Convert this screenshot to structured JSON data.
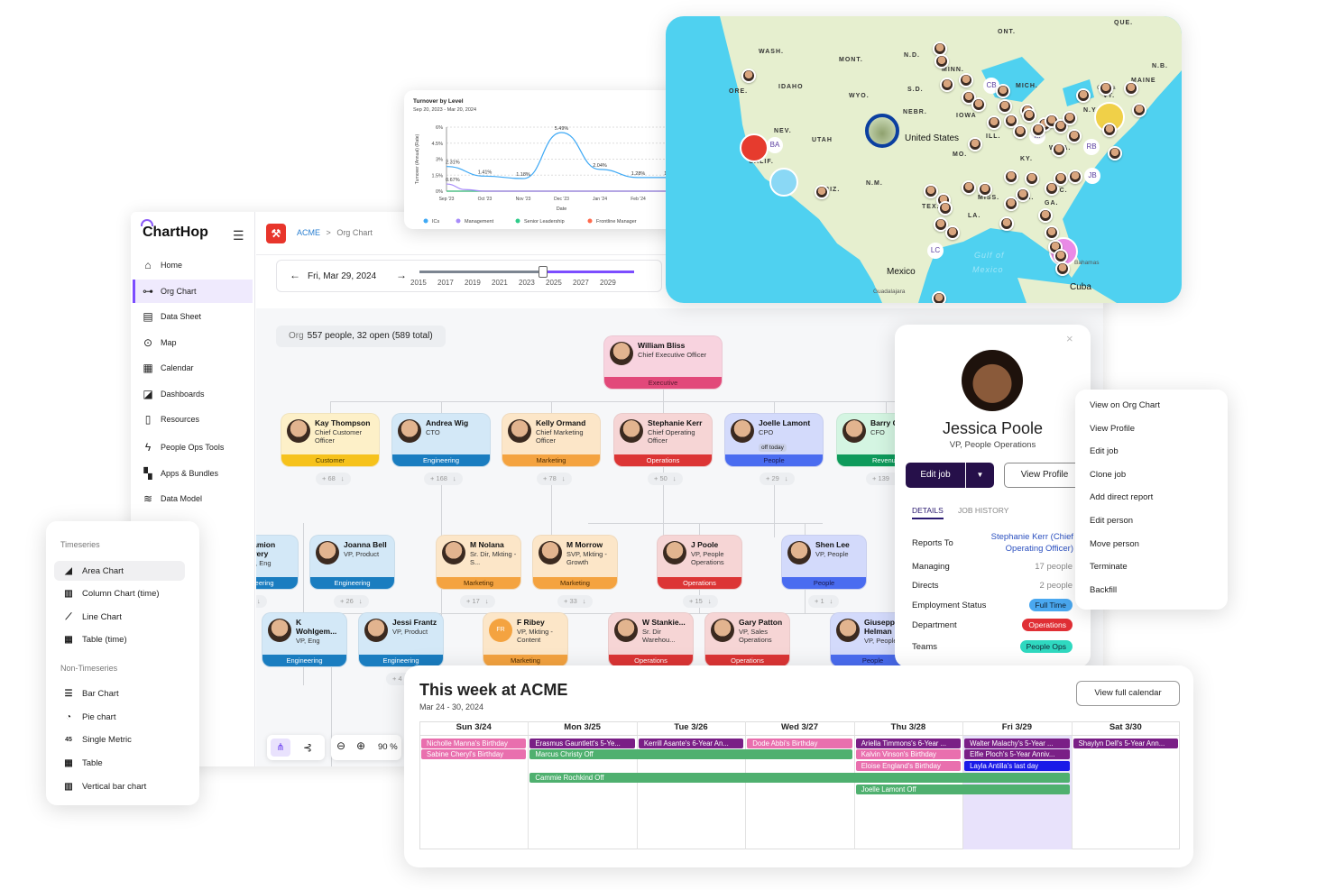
{
  "app": {
    "brand": "ChartHop",
    "org_logo": "ACME",
    "breadcrumb": [
      "ACME",
      ">",
      "Org Chart"
    ],
    "sidebar": [
      {
        "label": "Home",
        "icon": "home-icon"
      },
      {
        "label": "Org Chart",
        "icon": "org-chart-icon",
        "active": true
      },
      {
        "label": "Data Sheet",
        "icon": "data-sheet-icon"
      },
      {
        "label": "Map",
        "icon": "map-pin-icon"
      },
      {
        "label": "Calendar",
        "icon": "calendar-icon"
      },
      {
        "label": "Dashboards",
        "icon": "dashboard-icon"
      },
      {
        "label": "Resources",
        "icon": "book-icon"
      },
      {
        "label": "People Ops Tools",
        "icon": "lightning-icon"
      },
      {
        "label": "Apps & Bundles",
        "icon": "apps-icon"
      },
      {
        "label": "Data Model",
        "icon": "database-icon"
      }
    ],
    "timeline": {
      "date": "Fri, Mar 29, 2024",
      "years": [
        "2015",
        "2017",
        "2019",
        "2021",
        "2023",
        "2025",
        "2027",
        "2029"
      ],
      "slider_position_year": 2024.2
    },
    "org_summary": {
      "label": "Org",
      "value": "557 people, 32 open (589 total)"
    },
    "zoom_level": "90 %"
  },
  "org_cards": [
    {
      "name": "William Bliss",
      "title": "Chief Executive Officer",
      "dept": "Executive"
    },
    {
      "name": "Kay Thompson",
      "title": "Chief Customer Officer",
      "dept": "Customer"
    },
    {
      "name": "Andrea Wig",
      "title": "CTO",
      "dept": "Engineering"
    },
    {
      "name": "Kelly Ormand",
      "title": "Chief Marketing Officer",
      "dept": "Marketing"
    },
    {
      "name": "Stephanie Kerr",
      "title": "Chief Operating Officer",
      "dept": "Operations"
    },
    {
      "name": "Joelle Lamont",
      "title": "CPO",
      "dept": "People",
      "badge": "off today"
    },
    {
      "name": "Barry C",
      "title": "CFO",
      "dept": "Revenue"
    },
    {
      "name": "Damion Avery",
      "title": "VP, Eng",
      "dept": "Engineering"
    },
    {
      "name": "Joanna Bell",
      "title": "VP, Product",
      "dept": "Engineering"
    },
    {
      "name": "M Nolana",
      "title": "Sr. Dir, Mkting - S...",
      "dept": "Marketing"
    },
    {
      "name": "M Morrow",
      "title": "SVP, Mkting - Growth",
      "dept": "Marketing"
    },
    {
      "name": "J Poole",
      "title": "VP, People Operations",
      "dept": "Operations"
    },
    {
      "name": "Shen Lee",
      "title": "VP, People",
      "dept": "People"
    },
    {
      "name": "K Wohlgem...",
      "title": "VP, Eng",
      "dept": "Engineering"
    },
    {
      "name": "Jessi Frantz",
      "title": "VP, Product",
      "dept": "Engineering"
    },
    {
      "name": "F Ribey",
      "title": "VP, Mkting - Content",
      "dept": "Marketing",
      "initials": "FR"
    },
    {
      "name": "W Stankie...",
      "title": "Sr. Dir Warehou...",
      "dept": "Operations"
    },
    {
      "name": "Gary Patton",
      "title": "VP, Sales Operations",
      "dept": "Operations"
    },
    {
      "name": "Giuseppe Helman",
      "title": "VP, People",
      "dept": "People"
    }
  ],
  "report_counts": [
    "+ 68",
    "+ 168",
    "+ 78",
    "+ 50",
    "+ 29",
    "+ 139",
    "",
    "+ 26",
    "+ 17",
    "+ 33",
    "+ 15",
    "+ 1",
    "+ 4"
  ],
  "dept_colors": {
    "Executive": {
      "bg": "#f8d3df",
      "band": "#e2497a",
      "text": "#5a1a2e"
    },
    "Customer": {
      "bg": "#fdf0c8",
      "band": "#f6c21c",
      "text": "#4a3a00"
    },
    "Engineering": {
      "bg": "#d3e8f7",
      "band": "#1a7dc0",
      "text": "#ffffff"
    },
    "Marketing": {
      "bg": "#fce6c8",
      "band": "#f4a340",
      "text": "#4a2a00"
    },
    "Operations": {
      "bg": "#f6d5d5",
      "band": "#dc3535",
      "text": "#ffffff"
    },
    "People": {
      "bg": "#d3dafb",
      "band": "#4a6cf0",
      "text": "#1a1a50"
    },
    "Revenue": {
      "bg": "#d4f5e2",
      "band": "#0e9a5b",
      "text": "#ffffff"
    }
  },
  "chart_data": {
    "type": "line",
    "title": "Turnover by Level",
    "subtitle": "Sep 20, 2023 - Mar 20, 2024",
    "xlabel": "Date",
    "ylabel": "Turnover (Annual) (Rate)",
    "categories": [
      "Sep '23",
      "Oct '23",
      "Nov '23",
      "Dec '23",
      "Jan '24",
      "Feb '24",
      "Mar '24"
    ],
    "yticks": [
      "0%",
      "1.5%",
      "3%",
      "4.5%",
      "6%"
    ],
    "ylim": [
      0,
      6
    ],
    "grid": true,
    "legend_position": "bottom",
    "series": [
      {
        "name": "ICs",
        "color": "#3fa9f5",
        "values": [
          2.31,
          1.41,
          1.18,
          5.49,
          2.04,
          1.28,
          1.28
        ],
        "labels": [
          "2.31%",
          "1.41%",
          "1.18%",
          "5.49%",
          "2.04%",
          "1.28%",
          "1.28%"
        ]
      },
      {
        "name": "Management",
        "color": "#a78bfa",
        "values": [
          0.67,
          0,
          0,
          0,
          0,
          0,
          0
        ],
        "labels": [
          "0.67%"
        ]
      },
      {
        "name": "Senior Leadership",
        "color": "#2ecc8a",
        "values": [
          0,
          0,
          0,
          0,
          0,
          0,
          0
        ]
      },
      {
        "name": "Frontline Manager",
        "color": "#ff6a4d",
        "values": [
          0,
          0,
          0,
          0,
          0,
          0,
          0
        ]
      }
    ]
  },
  "map": {
    "labels": [
      "WASH.",
      "MONT.",
      "N.D.",
      "MINN.",
      "ONT.",
      "QUE.",
      "ORE.",
      "IDAHO",
      "WYO.",
      "S.D.",
      "MICH.",
      "Ottawa",
      "MAINE",
      "N.B.",
      "NEBR.",
      "IOWA",
      "N.Y.",
      "VT.",
      "NEV.",
      "UTAH",
      "United States",
      "ILL.",
      "MO.",
      "W.VA.",
      "KY.",
      "CALIF.",
      "N.M.",
      "ARIZ.",
      "MISS.",
      "ALA.",
      "GA.",
      "S.C.",
      "TEX.",
      "LA.",
      "Houston",
      "Gulf of",
      "Mexico",
      "Mexico",
      "Guadalajara",
      "Bahamas",
      "Cuba"
    ],
    "initials": [
      "BA",
      "CB",
      "M",
      "RB",
      "JB",
      "LC"
    ]
  },
  "profile": {
    "name": "Jessica Poole",
    "title": "VP, People Operations",
    "edit_label": "Edit job",
    "view_label": "View Profile",
    "tabs": [
      "DETAILS",
      "JOB HISTORY"
    ],
    "reports_to_label": "Reports To",
    "reports_to": "Stephanie Kerr (Chief Operating Officer)",
    "managing_label": "Managing",
    "managing": "17 people",
    "directs_label": "Directs",
    "directs": "2 people",
    "employment_label": "Employment Status",
    "employment": "Full Time",
    "department_label": "Department",
    "department": "Operations",
    "teams_label": "Teams",
    "teams": "People Ops"
  },
  "context_menu": [
    "View on Org Chart",
    "View Profile",
    "Edit job",
    "Clone job",
    "Add direct report",
    "Edit person",
    "Move person",
    "Terminate",
    "Backfill"
  ],
  "chart_types": {
    "timeseries_label": "Timeseries",
    "timeseries": [
      {
        "label": "Area Chart",
        "icon": "area-chart-icon",
        "glyph": "◢"
      },
      {
        "label": "Column Chart (time)",
        "icon": "column-chart-icon",
        "glyph": "▥"
      },
      {
        "label": "Line Chart",
        "icon": "line-chart-icon",
        "glyph": "⟋"
      },
      {
        "label": "Table (time)",
        "icon": "table-icon",
        "glyph": "▦"
      }
    ],
    "non_timeseries_label": "Non-Timeseries",
    "non_timeseries": [
      {
        "label": "Bar Chart",
        "icon": "bar-chart-icon",
        "glyph": "☰"
      },
      {
        "label": "Pie chart",
        "icon": "pie-chart-icon",
        "glyph": "◔"
      },
      {
        "label": "Single Metric",
        "icon": "single-metric-icon",
        "glyph": "45"
      },
      {
        "label": "Table",
        "icon": "table-icon",
        "glyph": "▦"
      },
      {
        "label": "Vertical bar chart",
        "icon": "vertical-bar-chart-icon",
        "glyph": "▥"
      }
    ]
  },
  "calendar": {
    "title": "This week at ACME",
    "range": "Mar 24 - 30, 2024",
    "button": "View full calendar",
    "days": [
      "Sun 3/24",
      "Mon 3/25",
      "Tue 3/26",
      "Wed 3/27",
      "Thu 3/28",
      "Fri 3/29",
      "Sat 3/30"
    ],
    "today_index": 5,
    "colors": {
      "birthday": "#e96fae",
      "anniversary": "#7a1f86",
      "off": "#4fb06f",
      "last_day": "#1a1ae8"
    },
    "events": [
      {
        "label": "Nicholle Manna's Birthday",
        "day": 0,
        "span": 1,
        "row": 0,
        "kind": "birthday"
      },
      {
        "label": "Sabine Cheryl's Birthday",
        "day": 0,
        "span": 1,
        "row": 1,
        "kind": "birthday"
      },
      {
        "label": "Erasmus Gauntlett's 5-Ye...",
        "day": 1,
        "span": 1,
        "row": 0,
        "kind": "anniversary"
      },
      {
        "label": "Marcus Christy Off",
        "day": 1,
        "span": 3,
        "row": 1,
        "kind": "off"
      },
      {
        "label": "Kerrill Asante's 6-Year An...",
        "day": 2,
        "span": 1,
        "row": 0,
        "kind": "anniversary"
      },
      {
        "label": "Dode Abbi's Birthday",
        "day": 3,
        "span": 1,
        "row": 0,
        "kind": "birthday"
      },
      {
        "label": "Ariella Timmons's 6-Year ...",
        "day": 4,
        "span": 1,
        "row": 0,
        "kind": "anniversary"
      },
      {
        "label": "Kalvin Vinson's Birthday",
        "day": 4,
        "span": 1,
        "row": 1,
        "kind": "birthday"
      },
      {
        "label": "Eloise England's Birthday",
        "day": 4,
        "span": 1,
        "row": 2,
        "kind": "birthday"
      },
      {
        "label": "Walter Malachy's 5-Year ...",
        "day": 5,
        "span": 1,
        "row": 0,
        "kind": "anniversary"
      },
      {
        "label": "Elfie Ploch's 5-Year Anniv...",
        "day": 5,
        "span": 1,
        "row": 1,
        "kind": "anniversary"
      },
      {
        "label": "Layla Antilla's last day",
        "day": 5,
        "span": 1,
        "row": 2,
        "kind": "last_day"
      },
      {
        "label": "Shaylyn Dell's 5-Year Ann...",
        "day": 6,
        "span": 1,
        "row": 0,
        "kind": "anniversary"
      },
      {
        "label": "Cammie Rochkind Off",
        "day": 1,
        "span": 5,
        "row": 3,
        "kind": "off"
      },
      {
        "label": "Joelle Lamont Off",
        "day": 4,
        "span": 2,
        "row": 4,
        "kind": "off"
      }
    ]
  }
}
